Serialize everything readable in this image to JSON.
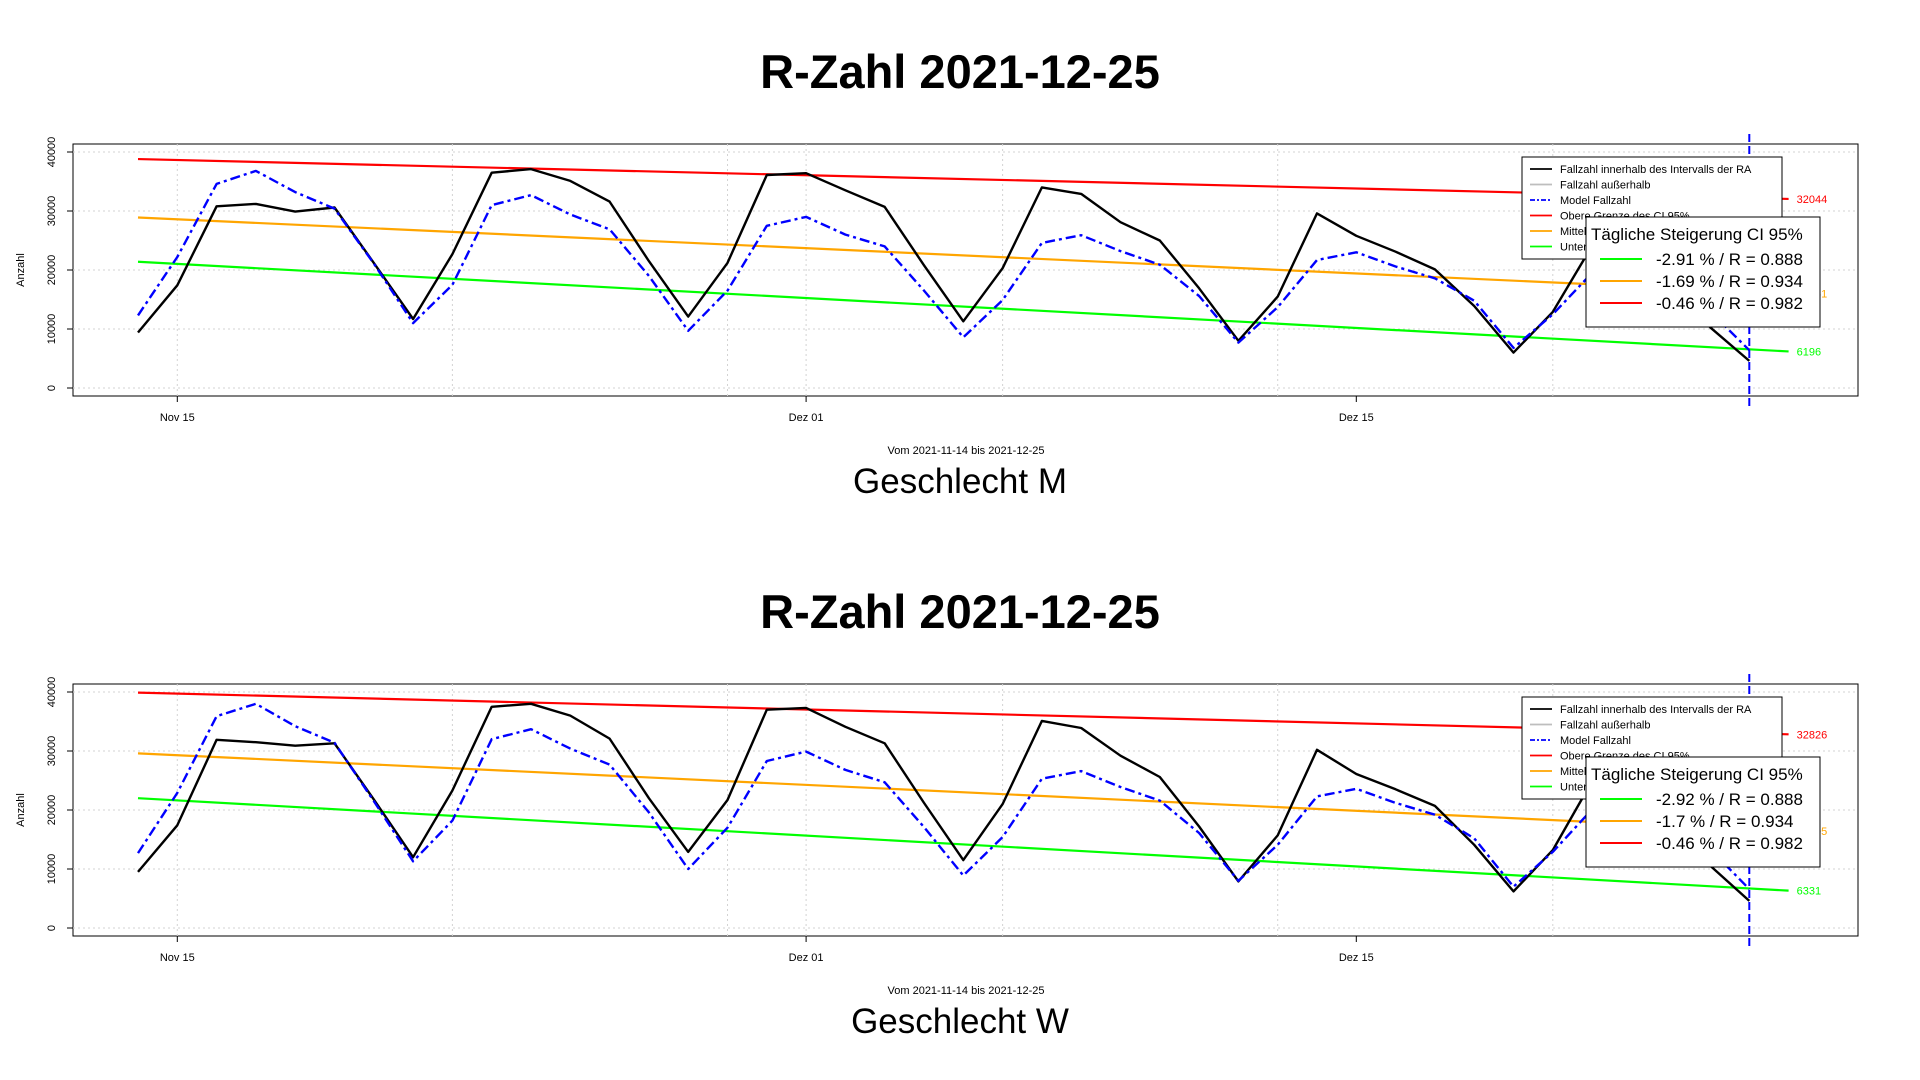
{
  "colors": {
    "cases": "#000000",
    "outside": "#bebebe",
    "model": "#0000ff",
    "upper": "#ff0000",
    "mean": "#ffa500",
    "lower": "#00ff00",
    "grid": "#d3d3d3"
  },
  "chart_data": [
    {
      "type": "line",
      "title": "R-Zahl 2021-12-25",
      "subtitle": "Geschlecht M",
      "xlabel": "Vom 2021-11-14 bis 2021-12-25",
      "ylabel": "Anzahl",
      "x_start": "2021-11-14",
      "x_end": "2021-12-25",
      "xticks": [
        {
          "label": "Nov 15",
          "date": "2021-11-15"
        },
        {
          "label": "Dez 01",
          "date": "2021-12-01"
        },
        {
          "label": "Dez 15",
          "date": "2021-12-15"
        }
      ],
      "ylim": [
        0,
        42000
      ],
      "yticks": [
        0,
        10000,
        20000,
        30000,
        40000
      ],
      "grid": true,
      "legend_position": "top-right",
      "legend": [
        "Fallzahl innerhalb des Intervalls der RA",
        "Fallzahl außerhalb",
        "Model Fallzahl",
        "Obere Grenze des CI 95%",
        "Mittelwert",
        "Untere Grenze des CI 95%"
      ],
      "steigerung": {
        "title": "Tägliche Steigerung CI  95%",
        "rows": [
          {
            "color": "lower",
            "text": "-2.91 % / R = 0.888"
          },
          {
            "color": "mean",
            "text": "-1.69 % / R = 0.934"
          },
          {
            "color": "upper",
            "text": "-0.46 % / R = 0.982"
          }
        ]
      },
      "end_labels": {
        "upper": "32044",
        "mean": "16051",
        "lower": "6196"
      },
      "series": [
        {
          "name": "Fallzahl innerhalb des Intervalls der RA",
          "key": "cases",
          "values": [
            9400,
            17400,
            30800,
            31200,
            29900,
            30600,
            21200,
            11700,
            22700,
            36500,
            37100,
            35100,
            31600,
            21500,
            12100,
            21200,
            36100,
            36400,
            33500,
            30700,
            20800,
            11300,
            20300,
            34000,
            32900,
            28100,
            25000,
            16900,
            8000,
            15500,
            29600,
            25800,
            23100,
            20100,
            13900,
            6000,
            12900,
            24100,
            21500,
            16800,
            10300,
            4600
          ]
        },
        {
          "name": "Model Fallzahl",
          "key": "model",
          "values": [
            12300,
            22200,
            34600,
            36800,
            33200,
            30400,
            21100,
            11000,
            17500,
            31000,
            32700,
            29400,
            26900,
            19000,
            9700,
            16500,
            27500,
            29000,
            26000,
            24000,
            16500,
            8600,
            14900,
            24600,
            25900,
            23200,
            20900,
            15600,
            7700,
            13700,
            21700,
            23000,
            20600,
            18600,
            14800,
            6800,
            12500,
            19500,
            19800,
            17500,
            13000,
            6400
          ]
        },
        {
          "name": "Obere Grenze des CI 95%",
          "key": "upper",
          "from": 38800,
          "to": 32044
        },
        {
          "name": "Mittelwert",
          "key": "mean",
          "from": 28900,
          "to": 16051
        },
        {
          "name": "Untere Grenze des CI 95%",
          "key": "lower",
          "from": 21400,
          "to": 6196
        }
      ]
    },
    {
      "type": "line",
      "title": "R-Zahl 2021-12-25",
      "subtitle": "Geschlecht W",
      "xlabel": "Vom 2021-11-14 bis 2021-12-25",
      "ylabel": "Anzahl",
      "x_start": "2021-11-14",
      "x_end": "2021-12-25",
      "xticks": [
        {
          "label": "Nov 15",
          "date": "2021-11-15"
        },
        {
          "label": "Dez 01",
          "date": "2021-12-01"
        },
        {
          "label": "Dez 15",
          "date": "2021-12-15"
        }
      ],
      "ylim": [
        0,
        42000
      ],
      "yticks": [
        0,
        10000,
        20000,
        30000,
        40000
      ],
      "grid": true,
      "legend_position": "top-right",
      "legend": [
        "Fallzahl innerhalb des Intervalls der RA",
        "Fallzahl außerhalb",
        "Model Fallzahl",
        "Obere Grenze des CI 95%",
        "Mittelwert",
        "Untere Grenze des CI 95%"
      ],
      "steigerung": {
        "title": "Tägliche Steigerung CI  95%",
        "rows": [
          {
            "color": "lower",
            "text": "-2.92 % / R = 0.888"
          },
          {
            "color": "mean",
            "text": "-1.7 % / R = 0.934"
          },
          {
            "color": "upper",
            "text": "-0.46 % / R = 0.982"
          }
        ]
      },
      "end_labels": {
        "upper": "32826",
        "mean": "16405",
        "lower": "6331"
      },
      "series": [
        {
          "name": "Fallzahl innerhalb des Intervalls der RA",
          "key": "cases",
          "values": [
            9500,
            17400,
            31900,
            31500,
            30900,
            31300,
            21800,
            12000,
            23300,
            37500,
            38000,
            36000,
            32100,
            22000,
            12900,
            21700,
            37000,
            37300,
            34100,
            31300,
            21200,
            11500,
            21000,
            35100,
            33900,
            29200,
            25600,
            17200,
            7900,
            15700,
            30200,
            26100,
            23500,
            20700,
            14100,
            6200,
            13200,
            24900,
            22000,
            17200,
            10600,
            4600
          ]
        },
        {
          "name": "Model Fallzahl",
          "key": "model",
          "values": [
            12700,
            22900,
            35900,
            38000,
            34200,
            31400,
            21500,
            11300,
            18200,
            32000,
            33700,
            30400,
            27700,
            19600,
            10000,
            17000,
            28300,
            29900,
            26800,
            24700,
            17100,
            8900,
            15400,
            25300,
            26600,
            23900,
            21600,
            16100,
            8000,
            14100,
            22300,
            23600,
            21200,
            19200,
            15200,
            7000,
            12900,
            20100,
            20400,
            18000,
            13400,
            6600
          ]
        },
        {
          "name": "Obere Grenze des CI 95%",
          "key": "upper",
          "from": 39900,
          "to": 32826
        },
        {
          "name": "Mittelwert",
          "key": "mean",
          "from": 29600,
          "to": 16405
        },
        {
          "name": "Untere Grenze des CI 95%",
          "key": "lower",
          "from": 22000,
          "to": 6331
        }
      ]
    }
  ]
}
